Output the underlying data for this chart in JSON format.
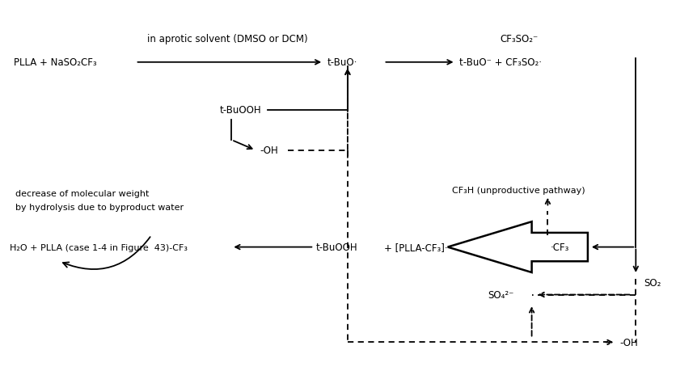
{
  "figsize": [
    8.37,
    4.6
  ],
  "dpi": 100,
  "bg_color": "white",
  "font_size": 8.5,
  "labels": {
    "PLLA_Na": "PLLA + NaSO₂CF₃",
    "t_BuO_mid": "t-BuO·",
    "t_BuO_right": "t-BuO⁻ + CF₃SO₂·",
    "CF3SO2_top": "CF₃SO₂⁻",
    "t_BuOOH_mid": "t-BuOOH",
    "minus_OH": "-OH",
    "CF3H_label": "CF₃H (unproductive pathway)",
    "PLLA_CF3_radical": "+ [PLLA-CF₃]·",
    "dot_CF3": "·CF₃",
    "t_BuOOH_bottom": "t-BuOOH",
    "product": "H₂O + PLLA (case 1-4 in Figure  43)-CF₃",
    "SO2_label": "SO₂",
    "SO4_label": "SO₄²⁻",
    "OH_bottom": "-OH",
    "aprotic_label": "in aprotic solvent (DMSO or DCM)",
    "decrease_line1": "decrease of molecular weight",
    "decrease_line2": "by hydrolysis due to byproduct water"
  }
}
